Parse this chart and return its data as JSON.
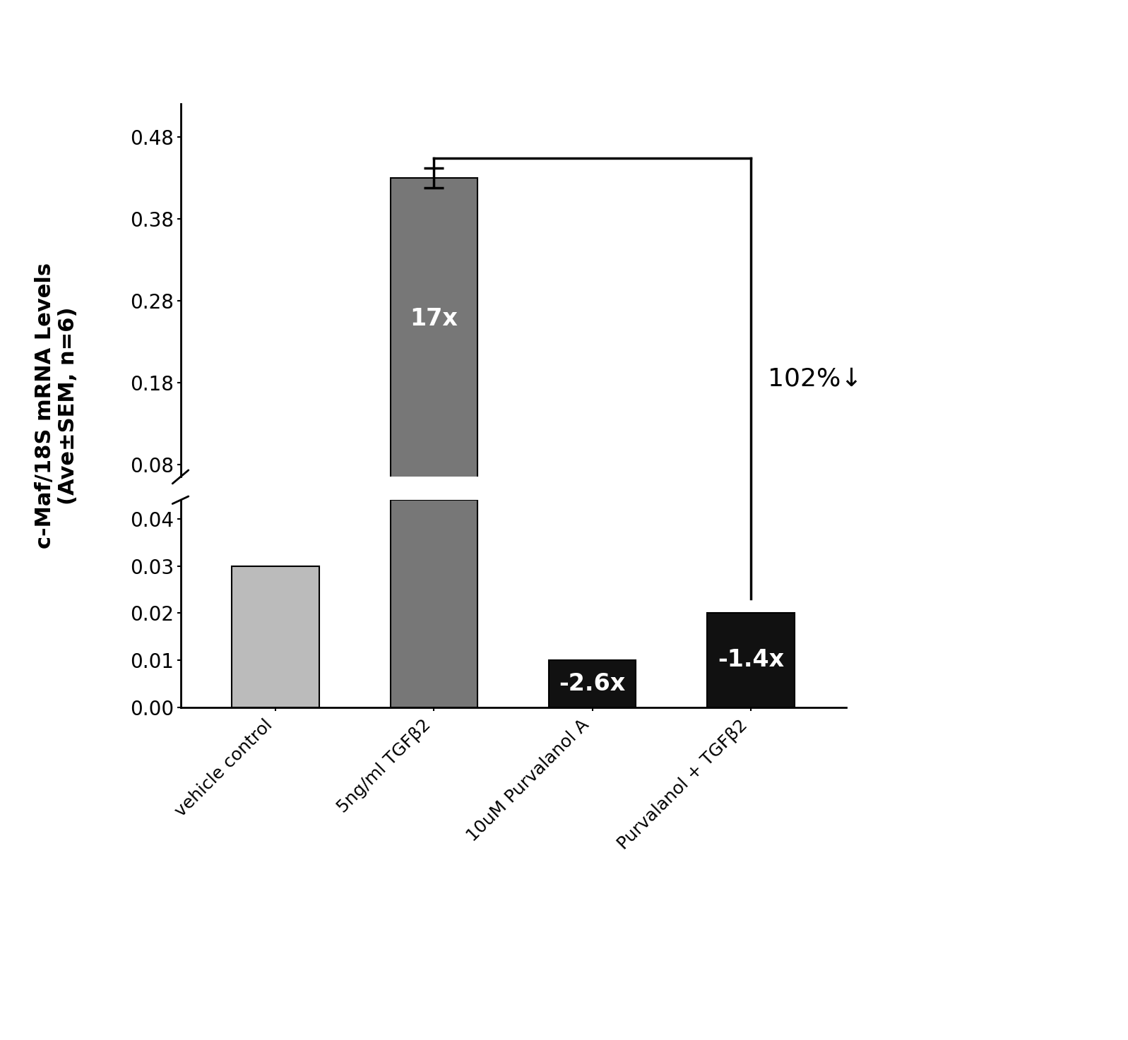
{
  "categories": [
    "vehicle control",
    "5ng/ml TGFβ2",
    "10uM Purvalanol A",
    "Purvalanol + TGFβ2"
  ],
  "values": [
    0.03,
    0.43,
    0.01,
    0.02
  ],
  "error": [
    0.0,
    0.012,
    0.0,
    0.0
  ],
  "bar_labels": [
    "",
    "17x",
    "-2.6x",
    "-1.4x"
  ],
  "bar_color_1": "#bbbbbb",
  "bar_color_2": "#777777",
  "bar_color_dark": "#111111",
  "ylabel": "c-Maf/18S mRNA Levels\n(Ave±SEM, n=6)",
  "bracket_label": "102%↓",
  "yticks_lower": [
    0.0,
    0.01,
    0.02,
    0.03,
    0.04
  ],
  "yticks_upper": [
    0.08,
    0.18,
    0.28,
    0.38,
    0.48
  ],
  "lower_ylim": [
    0.0,
    0.044
  ],
  "upper_ylim": [
    0.065,
    0.52
  ],
  "background_color": "#ffffff",
  "bar_width": 0.55,
  "fontsize_ticks": 20,
  "fontsize_ylabel": 22,
  "fontsize_barlabel": 24,
  "fontsize_bracket": 26
}
